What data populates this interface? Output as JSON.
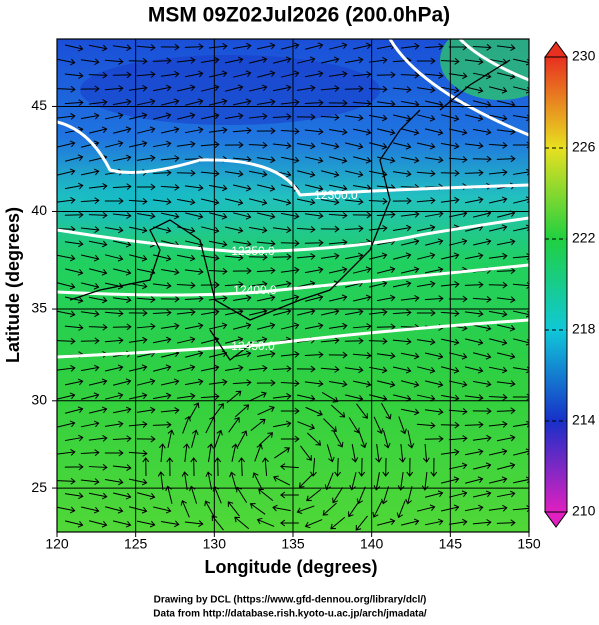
{
  "title": "MSM 09Z02Jul2026 (200.0hPa)",
  "x_axis": {
    "label": "Longitude (degrees)",
    "lim": [
      120,
      150
    ],
    "ticks": [
      120,
      125,
      130,
      135,
      140,
      145,
      150
    ]
  },
  "y_axis": {
    "label": "Latitude  (degrees)",
    "lim": [
      22.4,
      48
    ],
    "ticks": [
      25,
      30,
      35,
      40,
      45
    ],
    "projection": "mercator"
  },
  "colorbar": {
    "lim": [
      210,
      230
    ],
    "ticks": [
      210,
      214,
      218,
      222,
      226,
      230
    ]
  },
  "contour_labels": [
    "12300.0",
    "12350.0",
    "12400.0",
    "12450.0"
  ],
  "footer": [
    "Drawing by DCL (https://www.gfd-dennou.org/library/dcl/)",
    "Data from http://database.rish.kyoto-u.ac.jp/arch/jmadata/"
  ]
}
